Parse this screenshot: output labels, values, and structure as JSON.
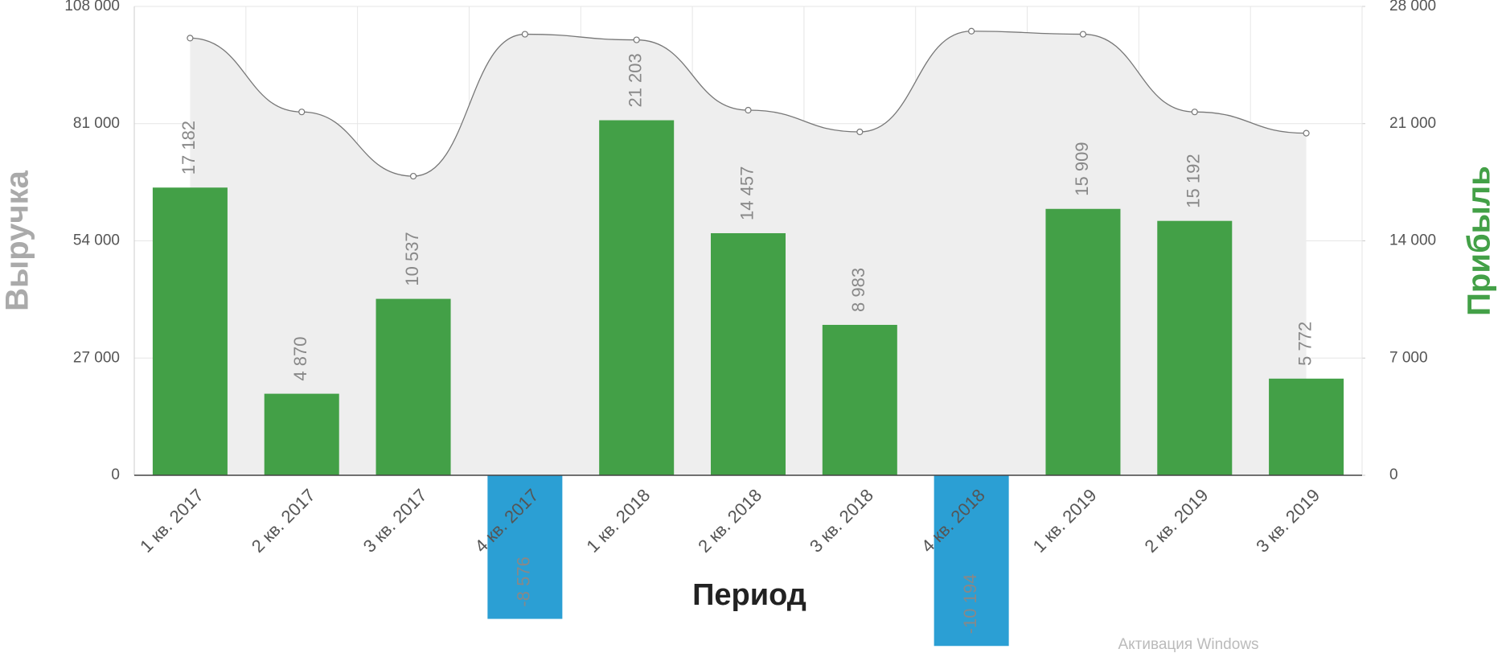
{
  "chart_data": {
    "type": "combo",
    "x_title": "Период",
    "categories": [
      "1 кв. 2017",
      "2 кв. 2017",
      "3 кв. 2017",
      "4 кв. 2017",
      "1 кв. 2018",
      "2 кв. 2018",
      "3 кв. 2018",
      "4 кв. 2018",
      "1 кв. 2019",
      "2 кв. 2019",
      "3 кв. 2019"
    ],
    "series": [
      {
        "name": "Выручка",
        "type": "area",
        "axis": "y",
        "color": "#777777",
        "fill": "#eeeeee",
        "title_color": "#aaaaaa",
        "values": [
          100700,
          83700,
          68900,
          101600,
          100300,
          84100,
          79100,
          102300,
          101600,
          83700,
          78800
        ]
      },
      {
        "name": "Прибыль",
        "type": "bar",
        "axis": "y2",
        "color": "#43a047",
        "negative_color": "#2b9fd4",
        "title_color": "#43a047",
        "values": [
          17182,
          4870,
          10537,
          -8576,
          21203,
          14457,
          8983,
          -10194,
          15909,
          15192,
          5772
        ],
        "value_labels": [
          "17 182",
          "4 870",
          "10 537",
          "-8 576",
          "21 203",
          "14 457",
          "8 983",
          "-10 194",
          "15 909",
          "15 192",
          "5 772"
        ]
      }
    ],
    "ylim": [
      0,
      108000
    ],
    "yticks": [
      {
        "value": 0,
        "label": "0"
      },
      {
        "value": 27000,
        "label": "27 000"
      },
      {
        "value": 54000,
        "label": "54 000"
      },
      {
        "value": 81000,
        "label": "81 000"
      },
      {
        "value": 108000,
        "label": "108 000"
      }
    ],
    "y2lim": [
      0,
      28000
    ],
    "y2ticks": [
      {
        "value": 0,
        "label": "0"
      },
      {
        "value": 7000,
        "label": "7 000"
      },
      {
        "value": 14000,
        "label": "14 000"
      },
      {
        "value": 21000,
        "label": "21 000"
      },
      {
        "value": 28000,
        "label": "28 000"
      }
    ],
    "grid": true
  },
  "watermark": "Активация Windows"
}
